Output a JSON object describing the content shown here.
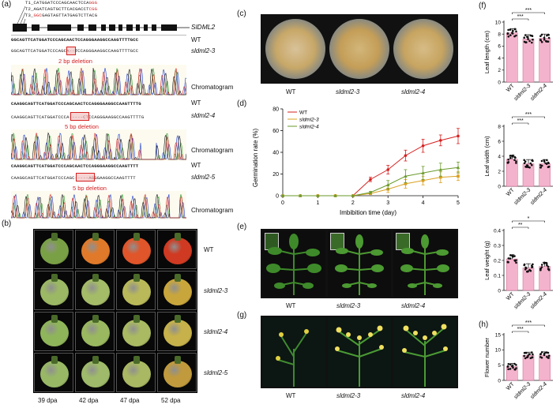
{
  "panel_labels": {
    "a": "(a)",
    "b": "(b)",
    "c": "(c)",
    "d": "(d)",
    "e": "(e)",
    "f": "(f)",
    "g": "(g)",
    "h": "(h)"
  },
  "panel_a": {
    "targets": [
      {
        "prefix": "T1_CATGGATCCCAGCAACTCCA",
        "pam": "GGG"
      },
      {
        "prefix": "T2_AGATCAGTGCTTCACGACCT",
        "pam": "CGG"
      },
      {
        "prefix": "T3_",
        "pam": "GGC",
        "suffix": "GAGTAGTTATGAGTCTTACG"
      }
    ],
    "gene": "SlDML2",
    "blocks": [
      {
        "wt_seq": "GGCAGTTCATGGATCCCAGCAACTCCAGGGAAGGCCAAGTTTTGCC",
        "mut_seq": "GGCAGTTCATGGATCCCAGCA--TCCAGGGAAGGCCAAGTTTTGCC",
        "wt_label": "WT",
        "mut_label": "sldml2-3",
        "deletion": "2 bp deletion",
        "chrom": "Chromatogram"
      },
      {
        "wt_seq": "CAAGGCAGTTCATGGATCCCAGCAACTCCAGGGAAGGCCAAGTTTTG",
        "mut_seq": "CAAGGCAGTTCATGGATCCCA-----CTCCAGGGAAGGCCAAGTTTTG",
        "wt_label": "WT",
        "mut_label": "sldml2-4",
        "deletion": "5 bp deletion",
        "chrom": "Chromatogram"
      },
      {
        "wt_seq": "CAAGGCAGTTCATGGATCCCAGCAACTCCAGGGAAGGCCAAGTTTT",
        "mut_seq": "CAAGGCAGTTCATGGATCCCAGC-----AGGGAAGGCCAAGTTTT",
        "wt_label": "WT",
        "mut_label": "sldml2-5",
        "deletion": "5 bp deletion",
        "chrom": "Chromatogram"
      }
    ]
  },
  "panel_b": {
    "rows": [
      "WT",
      "sldml2-3",
      "sldml2-4",
      "sldml2-5"
    ],
    "cols": [
      "39 dpa",
      "42 dpa",
      "47 dpa",
      "52 dpa"
    ],
    "colors": [
      [
        "#7aa046",
        "#e07a2a",
        "#e0552a",
        "#d03a22"
      ],
      [
        "#9bb864",
        "#a4bb68",
        "#b9b95a",
        "#c9a63c"
      ],
      [
        "#8fb55a",
        "#9ab85f",
        "#a9ba62",
        "#c6b14a"
      ],
      [
        "#98b866",
        "#9eba6a",
        "#a9b862",
        "#c09a3c"
      ]
    ]
  },
  "panel_c": {
    "labels": [
      "WT",
      "sldml2-3",
      "sldml2-4"
    ]
  },
  "panel_e": {
    "labels": [
      "WT",
      "sldml2-3",
      "sldml2-4"
    ]
  },
  "panel_g": {
    "labels": [
      "WT",
      "sldml2-3",
      "sldml2-4"
    ]
  },
  "chart_data": [
    {
      "id": "d",
      "type": "line",
      "xlabel": "Imbibition time (day)",
      "ylabel": "Germination rate (%)",
      "xlim": [
        0,
        5
      ],
      "ylim": [
        0,
        80
      ],
      "xticks": [
        0,
        1,
        2,
        3,
        4,
        5
      ],
      "yticks": [
        0,
        20,
        40,
        60,
        80
      ],
      "x": [
        0,
        0.5,
        1,
        1.5,
        2,
        2.5,
        3,
        3.5,
        4,
        4.5,
        5
      ],
      "series": [
        {
          "name": "WT",
          "color": "#d62020",
          "values": [
            0,
            0,
            0,
            0,
            0,
            15,
            24,
            37,
            46,
            51,
            55
          ],
          "err": [
            0,
            0,
            0,
            0,
            0,
            2,
            4,
            5,
            6,
            5,
            7
          ]
        },
        {
          "name": "sldml2-3",
          "color": "#d9a020",
          "values": [
            0,
            0,
            0,
            0,
            0,
            2,
            6,
            11,
            14,
            17,
            18
          ],
          "err": [
            0,
            0,
            0,
            0,
            0,
            1,
            3,
            4,
            4,
            5,
            4
          ]
        },
        {
          "name": "sldml2-4",
          "color": "#6a9a2a",
          "values": [
            0,
            0,
            0,
            0,
            0,
            3,
            10,
            18,
            21,
            24,
            26
          ],
          "err": [
            0,
            0,
            0,
            0,
            0,
            1,
            4,
            6,
            6,
            6,
            5
          ]
        }
      ],
      "legend": "top-left"
    },
    {
      "id": "f1",
      "type": "bar",
      "ylabel": "Leaf length (cm)",
      "ylim": [
        0,
        10
      ],
      "yticks": [
        0,
        2,
        4,
        6,
        8,
        10
      ],
      "categories": [
        "WT",
        "sldml2-3",
        "sldml2-4"
      ],
      "values": [
        8.2,
        7.2,
        7.3
      ],
      "sig": [
        {
          "from": 0,
          "to": 2,
          "label": "***"
        },
        {
          "from": 0,
          "to": 1,
          "label": "***"
        }
      ]
    },
    {
      "id": "f2",
      "type": "bar",
      "ylabel": "Leaf width (cm)",
      "ylim": [
        0,
        8
      ],
      "yticks": [
        0,
        2,
        4,
        6,
        8
      ],
      "categories": [
        "WT",
        "sldml2-3",
        "sldml2-4"
      ],
      "values": [
        3.6,
        3.0,
        3.0
      ],
      "sig": [
        {
          "from": 0,
          "to": 2,
          "label": "***"
        },
        {
          "from": 0,
          "to": 1,
          "label": "***"
        }
      ]
    },
    {
      "id": "f3",
      "type": "bar",
      "ylabel": "Leaf weight (g)",
      "ylim": [
        0,
        0.4
      ],
      "yticks": [
        0,
        0.1,
        0.2,
        0.3,
        0.4
      ],
      "categories": [
        "WT",
        "sldml2-3",
        "sldml2-4"
      ],
      "values": [
        0.21,
        0.15,
        0.16
      ],
      "sig": [
        {
          "from": 0,
          "to": 2,
          "label": "*"
        },
        {
          "from": 0,
          "to": 1,
          "label": "**"
        }
      ]
    },
    {
      "id": "h",
      "type": "bar",
      "ylabel": "Flower number",
      "ylim": [
        0,
        15
      ],
      "yticks": [
        0,
        5,
        10,
        15
      ],
      "categories": [
        "WT",
        "sldml2-3",
        "sldml2-4"
      ],
      "values": [
        4.5,
        8.2,
        8.3
      ],
      "sig": [
        {
          "from": 0,
          "to": 2,
          "label": "***"
        },
        {
          "from": 0,
          "to": 1,
          "label": "***"
        }
      ]
    }
  ],
  "colors": {
    "bar": "#f4b3cc",
    "bar_edge": "#d06090",
    "dots": "#111111",
    "deletion_box": "#f2b8b8"
  }
}
